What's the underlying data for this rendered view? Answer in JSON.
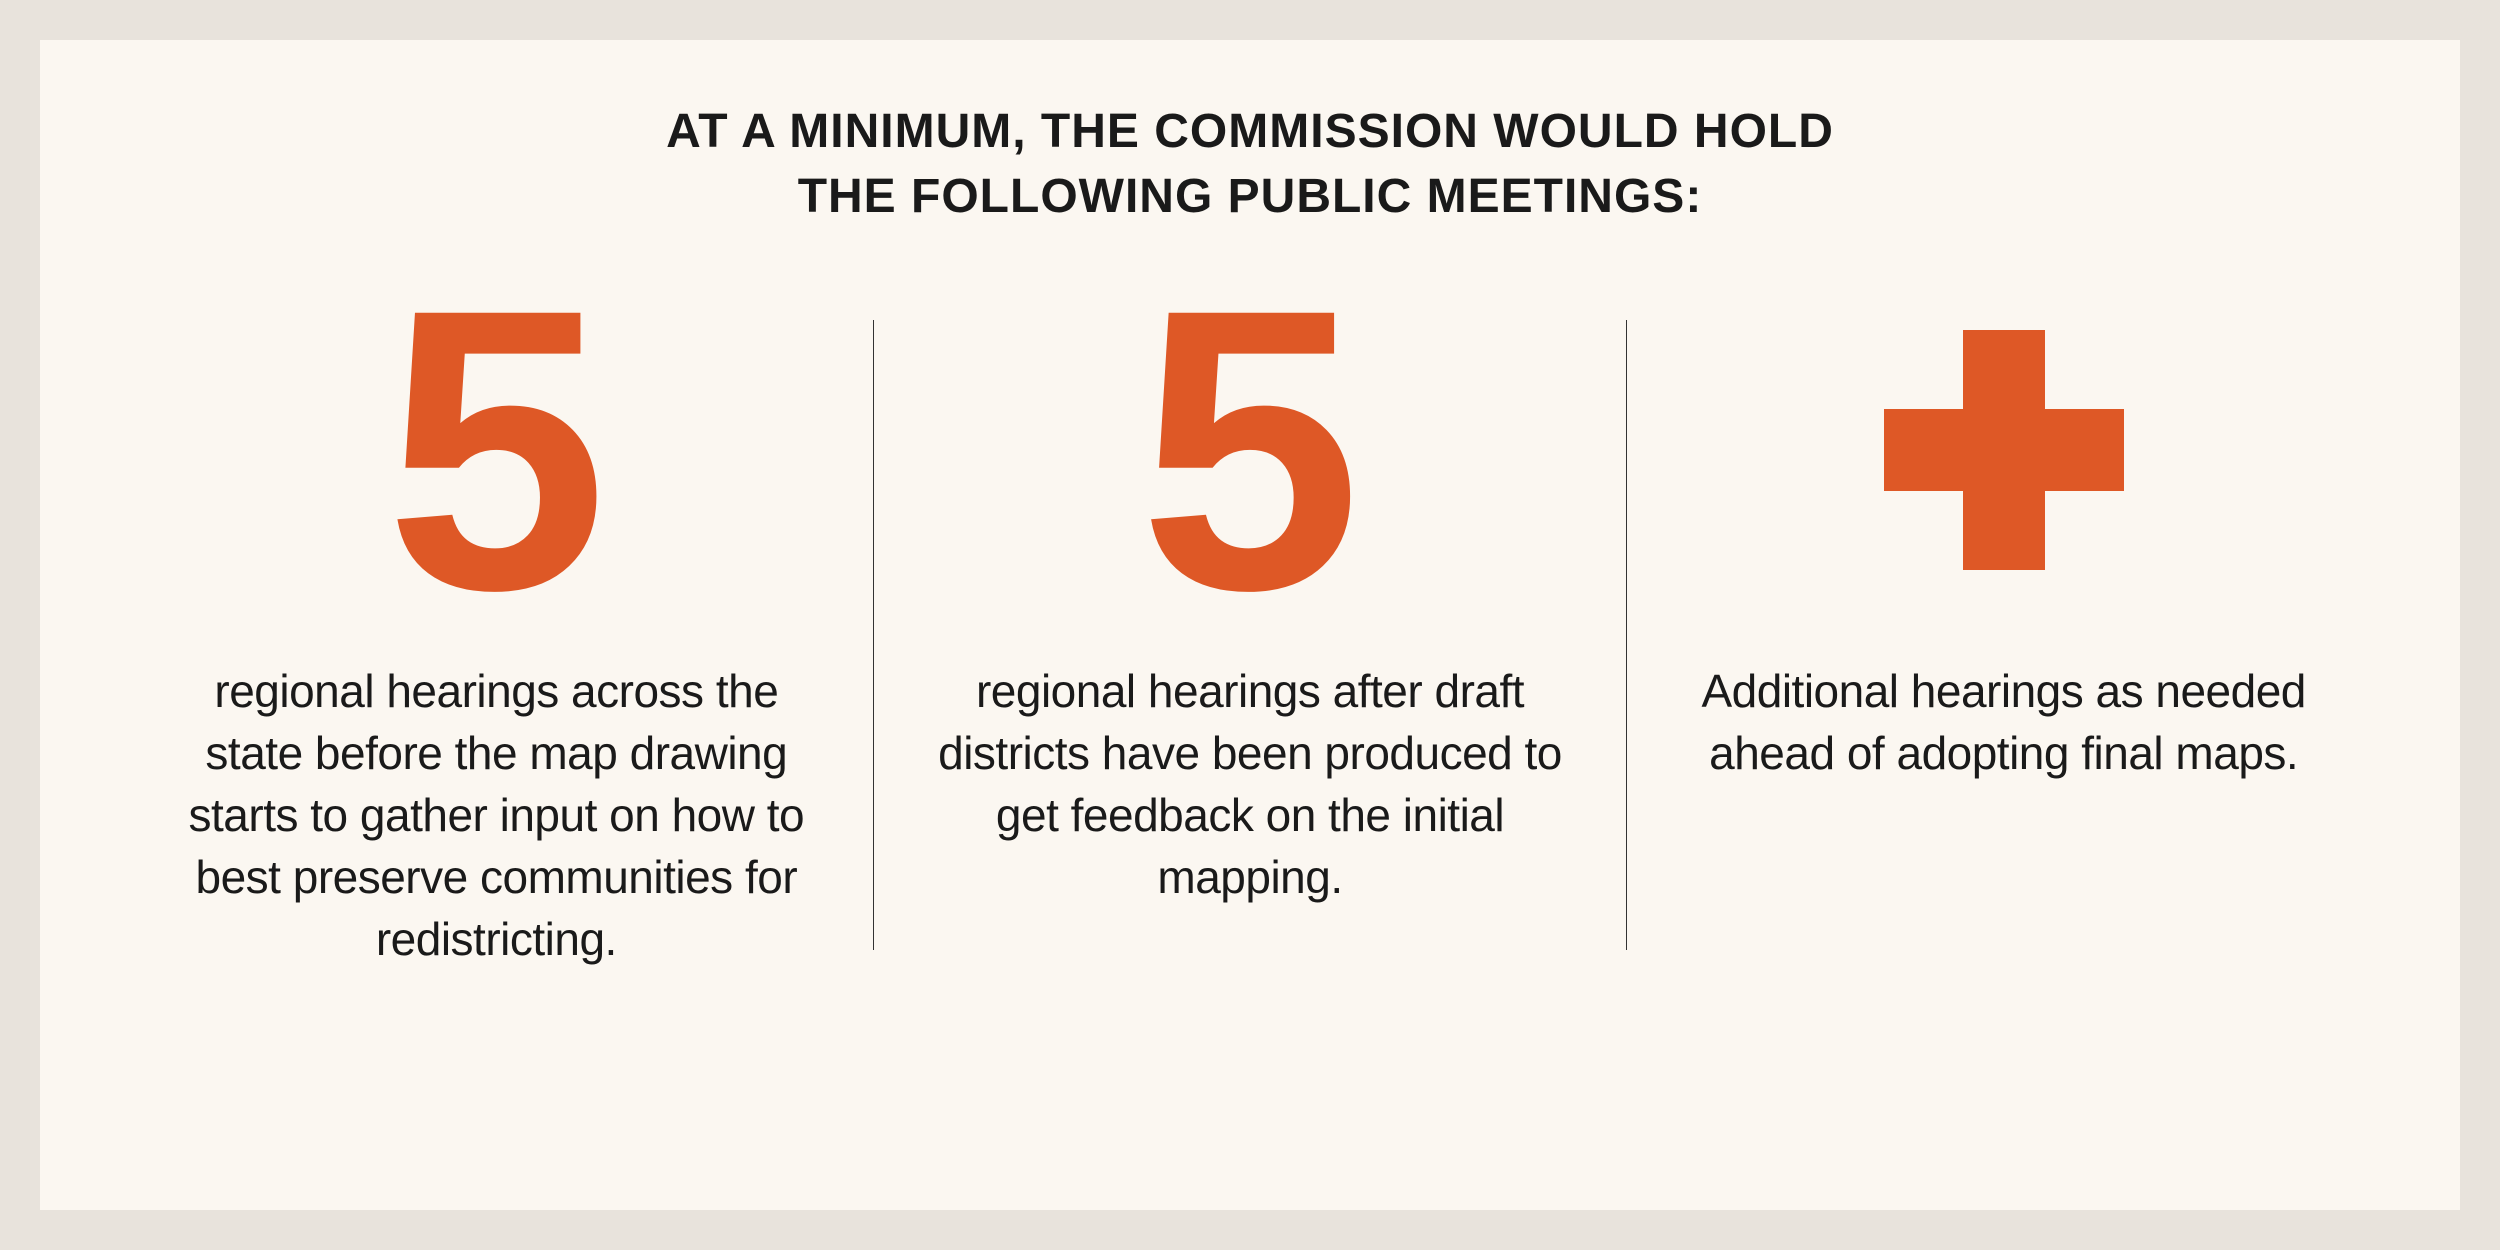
{
  "heading": {
    "line1": "AT A MINIMUM, THE COMMISSION WOULD HOLD",
    "line2": "THE FOLLOWING PUBLIC MEETINGS:",
    "fontsize": 48,
    "color": "#1a1a1a"
  },
  "columns": [
    {
      "symbol": "5",
      "symbol_type": "number",
      "description": "regional hearings across the state before the map drawing starts to gather input on how to best preserve communities for redistricting."
    },
    {
      "symbol": "5",
      "symbol_type": "number",
      "description": "regional hearings after draft districts have been produced to get feedback on the initial mapping."
    },
    {
      "symbol": "+",
      "symbol_type": "plus",
      "description": "Additional hearings as needed ahead of adopting final maps."
    }
  ],
  "styling": {
    "page_background": "#e8e3dc",
    "card_background": "#fbf7f1",
    "accent_color": "#de5826",
    "text_color": "#1a1a1a",
    "divider_color": "#333333",
    "big_number_fontsize": 400,
    "description_fontsize": 46,
    "plus_size": 240,
    "plus_arm_thickness": 82
  }
}
